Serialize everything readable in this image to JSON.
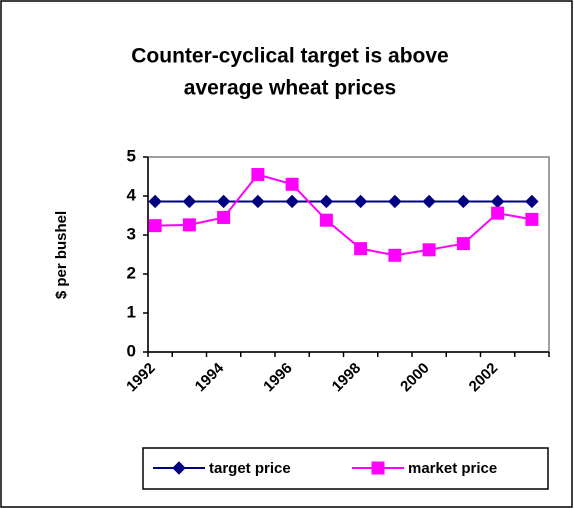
{
  "chart_data": {
    "type": "line",
    "title": [
      "Counter-cyclical target is above",
      "average wheat prices"
    ],
    "y_label": "$ per bushel",
    "categories": [
      "1992",
      null,
      "1994",
      null,
      "1996",
      null,
      "1998",
      null,
      "2000",
      null,
      "2002",
      null
    ],
    "series": [
      {
        "name": "target price",
        "color": "#000080",
        "marker": "diamond",
        "values": [
          3.86,
          3.86,
          3.86,
          3.86,
          3.86,
          3.86,
          3.86,
          3.86,
          3.86,
          3.86,
          3.86,
          3.86
        ]
      },
      {
        "name": "market price",
        "color": "#ff00ff",
        "marker": "square",
        "values": [
          3.24,
          3.26,
          3.45,
          4.55,
          4.3,
          3.38,
          2.65,
          2.48,
          2.62,
          2.78,
          3.56,
          3.4
        ]
      }
    ],
    "ylim": [
      0,
      5
    ],
    "yticks": [
      0,
      1,
      2,
      3,
      4,
      5
    ],
    "grid": false,
    "legend": "bottom"
  }
}
